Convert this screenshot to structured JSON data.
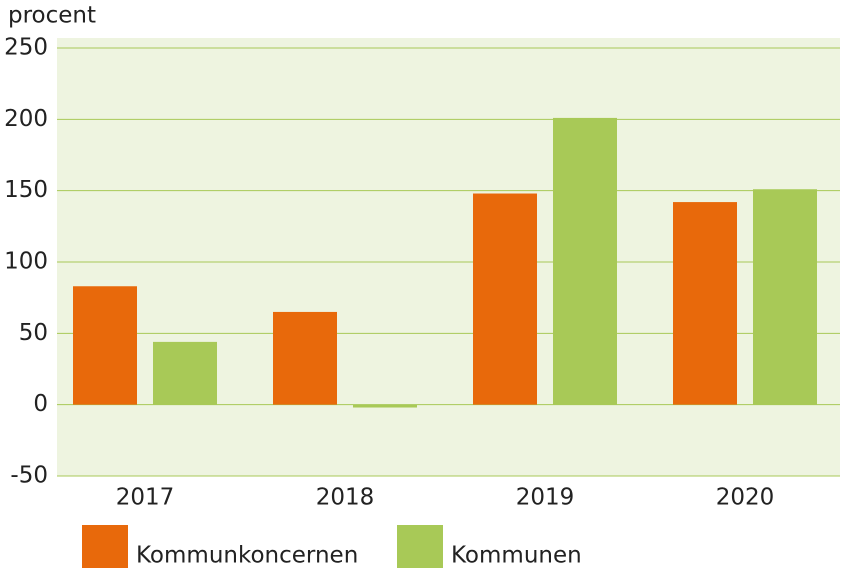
{
  "chart_data": {
    "type": "bar",
    "y_label": "procent",
    "categories": [
      "2017",
      "2018",
      "2019",
      "2020"
    ],
    "series": [
      {
        "name": "Kommunkoncernen",
        "color": "#e8690b",
        "values": [
          83,
          65,
          148,
          142
        ]
      },
      {
        "name": "Kommunen",
        "color": "#a8c957",
        "values": [
          44,
          -2,
          201,
          151
        ]
      }
    ],
    "ylim": [
      -50,
      250
    ],
    "yticks": [
      -50,
      0,
      50,
      100,
      150,
      200,
      250
    ],
    "grid": true
  }
}
